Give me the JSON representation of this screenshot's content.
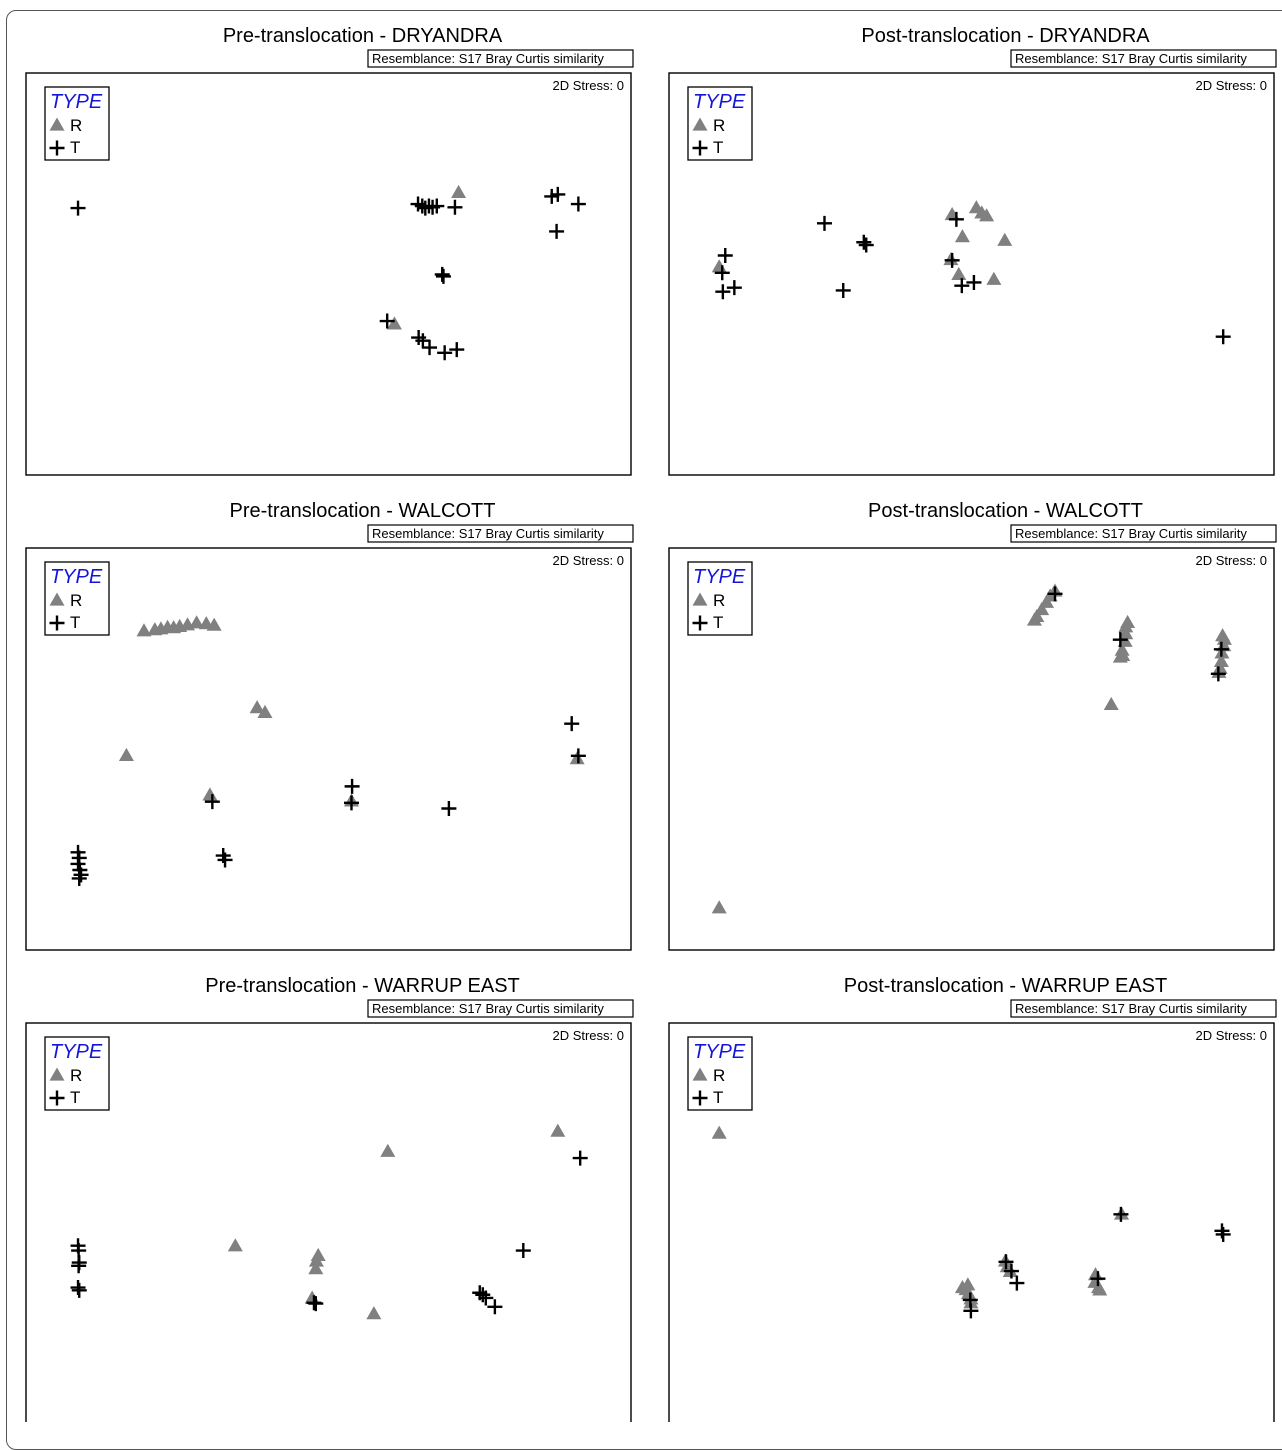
{
  "figure": {
    "resemblance_label": "Resemblance: S17 Bray Curtis similarity",
    "stress_label": "2D Stress: 0",
    "legend": {
      "title": "TYPE",
      "entries": [
        {
          "label": "R",
          "marker": "triangle",
          "color": "#808080"
        },
        {
          "label": "T",
          "marker": "cross",
          "color": "#000000"
        }
      ]
    }
  },
  "chart_data": [
    {
      "type": "scatter",
      "title": "Pre-translocation - DRYANDRA",
      "xlim": [
        0,
        100
      ],
      "ylim": [
        0,
        100
      ],
      "series": [
        {
          "name": "R",
          "points": [
            [
              71.5,
              29.7
            ],
            [
              60.9,
              62.4
            ]
          ]
        },
        {
          "name": "T",
          "points": [
            [
              8.6,
              33.6
            ],
            [
              64.8,
              32.6
            ],
            [
              65.5,
              33.1
            ],
            [
              66,
              33.6
            ],
            [
              66.6,
              33.1
            ],
            [
              67.2,
              33.4
            ],
            [
              67.9,
              33.1
            ],
            [
              70.9,
              33.4
            ],
            [
              86.9,
              30.7
            ],
            [
              87.9,
              30.2
            ],
            [
              91.3,
              32.6
            ],
            [
              87.7,
              39.4
            ],
            [
              68.8,
              50.1
            ],
            [
              69,
              50.6
            ],
            [
              64.9,
              65.8
            ],
            [
              65.6,
              66.6
            ],
            [
              66.7,
              68.3
            ],
            [
              69.2,
              69.6
            ],
            [
              71.2,
              68.8
            ],
            [
              59.7,
              61.7
            ]
          ]
        }
      ]
    },
    {
      "type": "scatter",
      "title": "Post-translocation - DRYANDRA",
      "xlim": [
        0,
        100
      ],
      "ylim": [
        0,
        100
      ],
      "series": [
        {
          "name": "R",
          "points": [
            [
              46.8,
              35.2
            ],
            [
              50.8,
              33.5
            ],
            [
              51.7,
              34.8
            ],
            [
              52.5,
              35.5
            ],
            [
              48.5,
              40.7
            ],
            [
              55.5,
              41.6
            ],
            [
              46.6,
              46.4
            ],
            [
              47.9,
              50.1
            ],
            [
              53.7,
              51.3
            ],
            [
              8.3,
              48.2
            ]
          ]
        },
        {
          "name": "T",
          "points": [
            [
              9.3,
              45.4
            ],
            [
              8.8,
              49.7
            ],
            [
              8.9,
              54.4
            ],
            [
              10.8,
              53.4
            ],
            [
              25.7,
              37.4
            ],
            [
              32.2,
              42.1
            ],
            [
              32.6,
              42.8
            ],
            [
              28.8,
              54.1
            ],
            [
              47.5,
              36.4
            ],
            [
              46.8,
              46.6
            ],
            [
              48.4,
              52.9
            ],
            [
              50.4,
              52.1
            ],
            [
              91.6,
              65.6
            ]
          ]
        }
      ]
    },
    {
      "type": "scatter",
      "title": "Pre-translocation - WALCOTT",
      "xlim": [
        0,
        100
      ],
      "ylim": [
        0,
        100
      ],
      "series": [
        {
          "name": "R",
          "points": [
            [
              21.3,
              20.3
            ],
            [
              22.3,
              20.1
            ],
            [
              23.4,
              19.7
            ],
            [
              24.4,
              19.8
            ],
            [
              25.4,
              19.5
            ],
            [
              26.7,
              19.1
            ],
            [
              28.2,
              18.6
            ],
            [
              29.8,
              18.8
            ],
            [
              31.1,
              19.2
            ],
            [
              19.5,
              20.6
            ],
            [
              38.2,
              39.7
            ],
            [
              39.5,
              40.9
            ],
            [
              16.6,
              51.6
            ],
            [
              30.4,
              61.4
            ],
            [
              53.8,
              62.9
            ],
            [
              91.1,
              52.4
            ]
          ]
        },
        {
          "name": "T",
          "points": [
            [
              90.2,
              43.7
            ],
            [
              91.3,
              51.7
            ],
            [
              30.8,
              63.1
            ],
            [
              53.9,
              59.3
            ],
            [
              53.8,
              63.4
            ],
            [
              32.6,
              76.5
            ],
            [
              32.9,
              77.6
            ],
            [
              69.9,
              64.8
            ],
            [
              8.6,
              75.7
            ],
            [
              8.8,
              77.1
            ],
            [
              8.6,
              78.6
            ],
            [
              8.9,
              80.1
            ],
            [
              9.1,
              81.3
            ],
            [
              8.8,
              82.2
            ]
          ]
        }
      ]
    },
    {
      "type": "scatter",
      "title": "Post-translocation - WALCOTT",
      "xlim": [
        0,
        100
      ],
      "ylim": [
        0,
        100
      ],
      "series": [
        {
          "name": "R",
          "points": [
            [
              63.8,
              10.7
            ],
            [
              63,
              11.9
            ],
            [
              62.4,
              13.5
            ],
            [
              61.6,
              15.3
            ],
            [
              60.8,
              17
            ],
            [
              60.4,
              17.9
            ],
            [
              75.8,
              18.5
            ],
            [
              75.5,
              19.6
            ],
            [
              75.5,
              21.3
            ],
            [
              75.4,
              23.2
            ],
            [
              74.9,
              25.4
            ],
            [
              75,
              26.7
            ],
            [
              74.6,
              27.1
            ],
            [
              91.5,
              21.8
            ],
            [
              91.8,
              22.7
            ],
            [
              91.7,
              24.3
            ],
            [
              91.4,
              26.1
            ],
            [
              91.3,
              28.2
            ],
            [
              91.1,
              29.9
            ],
            [
              90.9,
              30.9
            ],
            [
              73.1,
              38.9
            ],
            [
              8.3,
              89.5
            ]
          ]
        },
        {
          "name": "T",
          "points": [
            [
              63.8,
              11.4
            ],
            [
              74.6,
              22.8
            ],
            [
              91.3,
              25.2
            ],
            [
              90.8,
              31.3
            ]
          ]
        }
      ]
    },
    {
      "type": "scatter",
      "title": "Pre-translocation - WARRUP EAST",
      "xlim": [
        0,
        100
      ],
      "ylim": [
        0,
        100
      ],
      "series": [
        {
          "name": "R",
          "points": [
            [
              87.9,
              26.9
            ],
            [
              59.8,
              31.9
            ],
            [
              34.6,
              55.4
            ],
            [
              48.3,
              57.8
            ],
            [
              48,
              59.2
            ],
            [
              47.9,
              61.1
            ],
            [
              47.3,
              68.4
            ],
            [
              57.5,
              72.3
            ]
          ]
        },
        {
          "name": "T",
          "points": [
            [
              91.6,
              33.6
            ],
            [
              82.2,
              56.6
            ],
            [
              8.6,
              55.4
            ],
            [
              8.7,
              56.6
            ],
            [
              8.8,
              59.6
            ],
            [
              8.7,
              60.4
            ],
            [
              8.6,
              65.8
            ],
            [
              8.8,
              66.5
            ],
            [
              47.6,
              69.6
            ],
            [
              47.9,
              69.8
            ],
            [
              75,
              67.1
            ],
            [
              75.5,
              67.6
            ],
            [
              76,
              68.4
            ],
            [
              77.5,
              70.6
            ]
          ]
        }
      ]
    },
    {
      "type": "scatter",
      "title": "Post-translocation - WARRUP EAST",
      "xlim": [
        0,
        100
      ],
      "ylim": [
        0,
        100
      ],
      "series": [
        {
          "name": "R",
          "points": [
            [
              8.3,
              27.4
            ],
            [
              74.8,
              47.5
            ],
            [
              55.6,
              59.2
            ],
            [
              55.9,
              60.6
            ],
            [
              56.4,
              61.8
            ],
            [
              70.5,
              62.6
            ],
            [
              70.4,
              64.5
            ],
            [
              71,
              65.8
            ],
            [
              71.2,
              66.4
            ],
            [
              48.5,
              65.8
            ],
            [
              49.4,
              65.1
            ],
            [
              49.1,
              66.3
            ],
            [
              49.5,
              67.3
            ],
            [
              49.9,
              68.6
            ],
            [
              49.9,
              69.6
            ]
          ]
        },
        {
          "name": "T",
          "points": [
            [
              74.7,
              47.6
            ],
            [
              91.4,
              51.7
            ],
            [
              91.6,
              52.6
            ],
            [
              55.7,
              59.4
            ],
            [
              56.6,
              61.7
            ],
            [
              57.5,
              64.7
            ],
            [
              70.9,
              63.6
            ],
            [
              49.8,
              68.9
            ],
            [
              49.9,
              71.6
            ]
          ]
        }
      ]
    }
  ]
}
